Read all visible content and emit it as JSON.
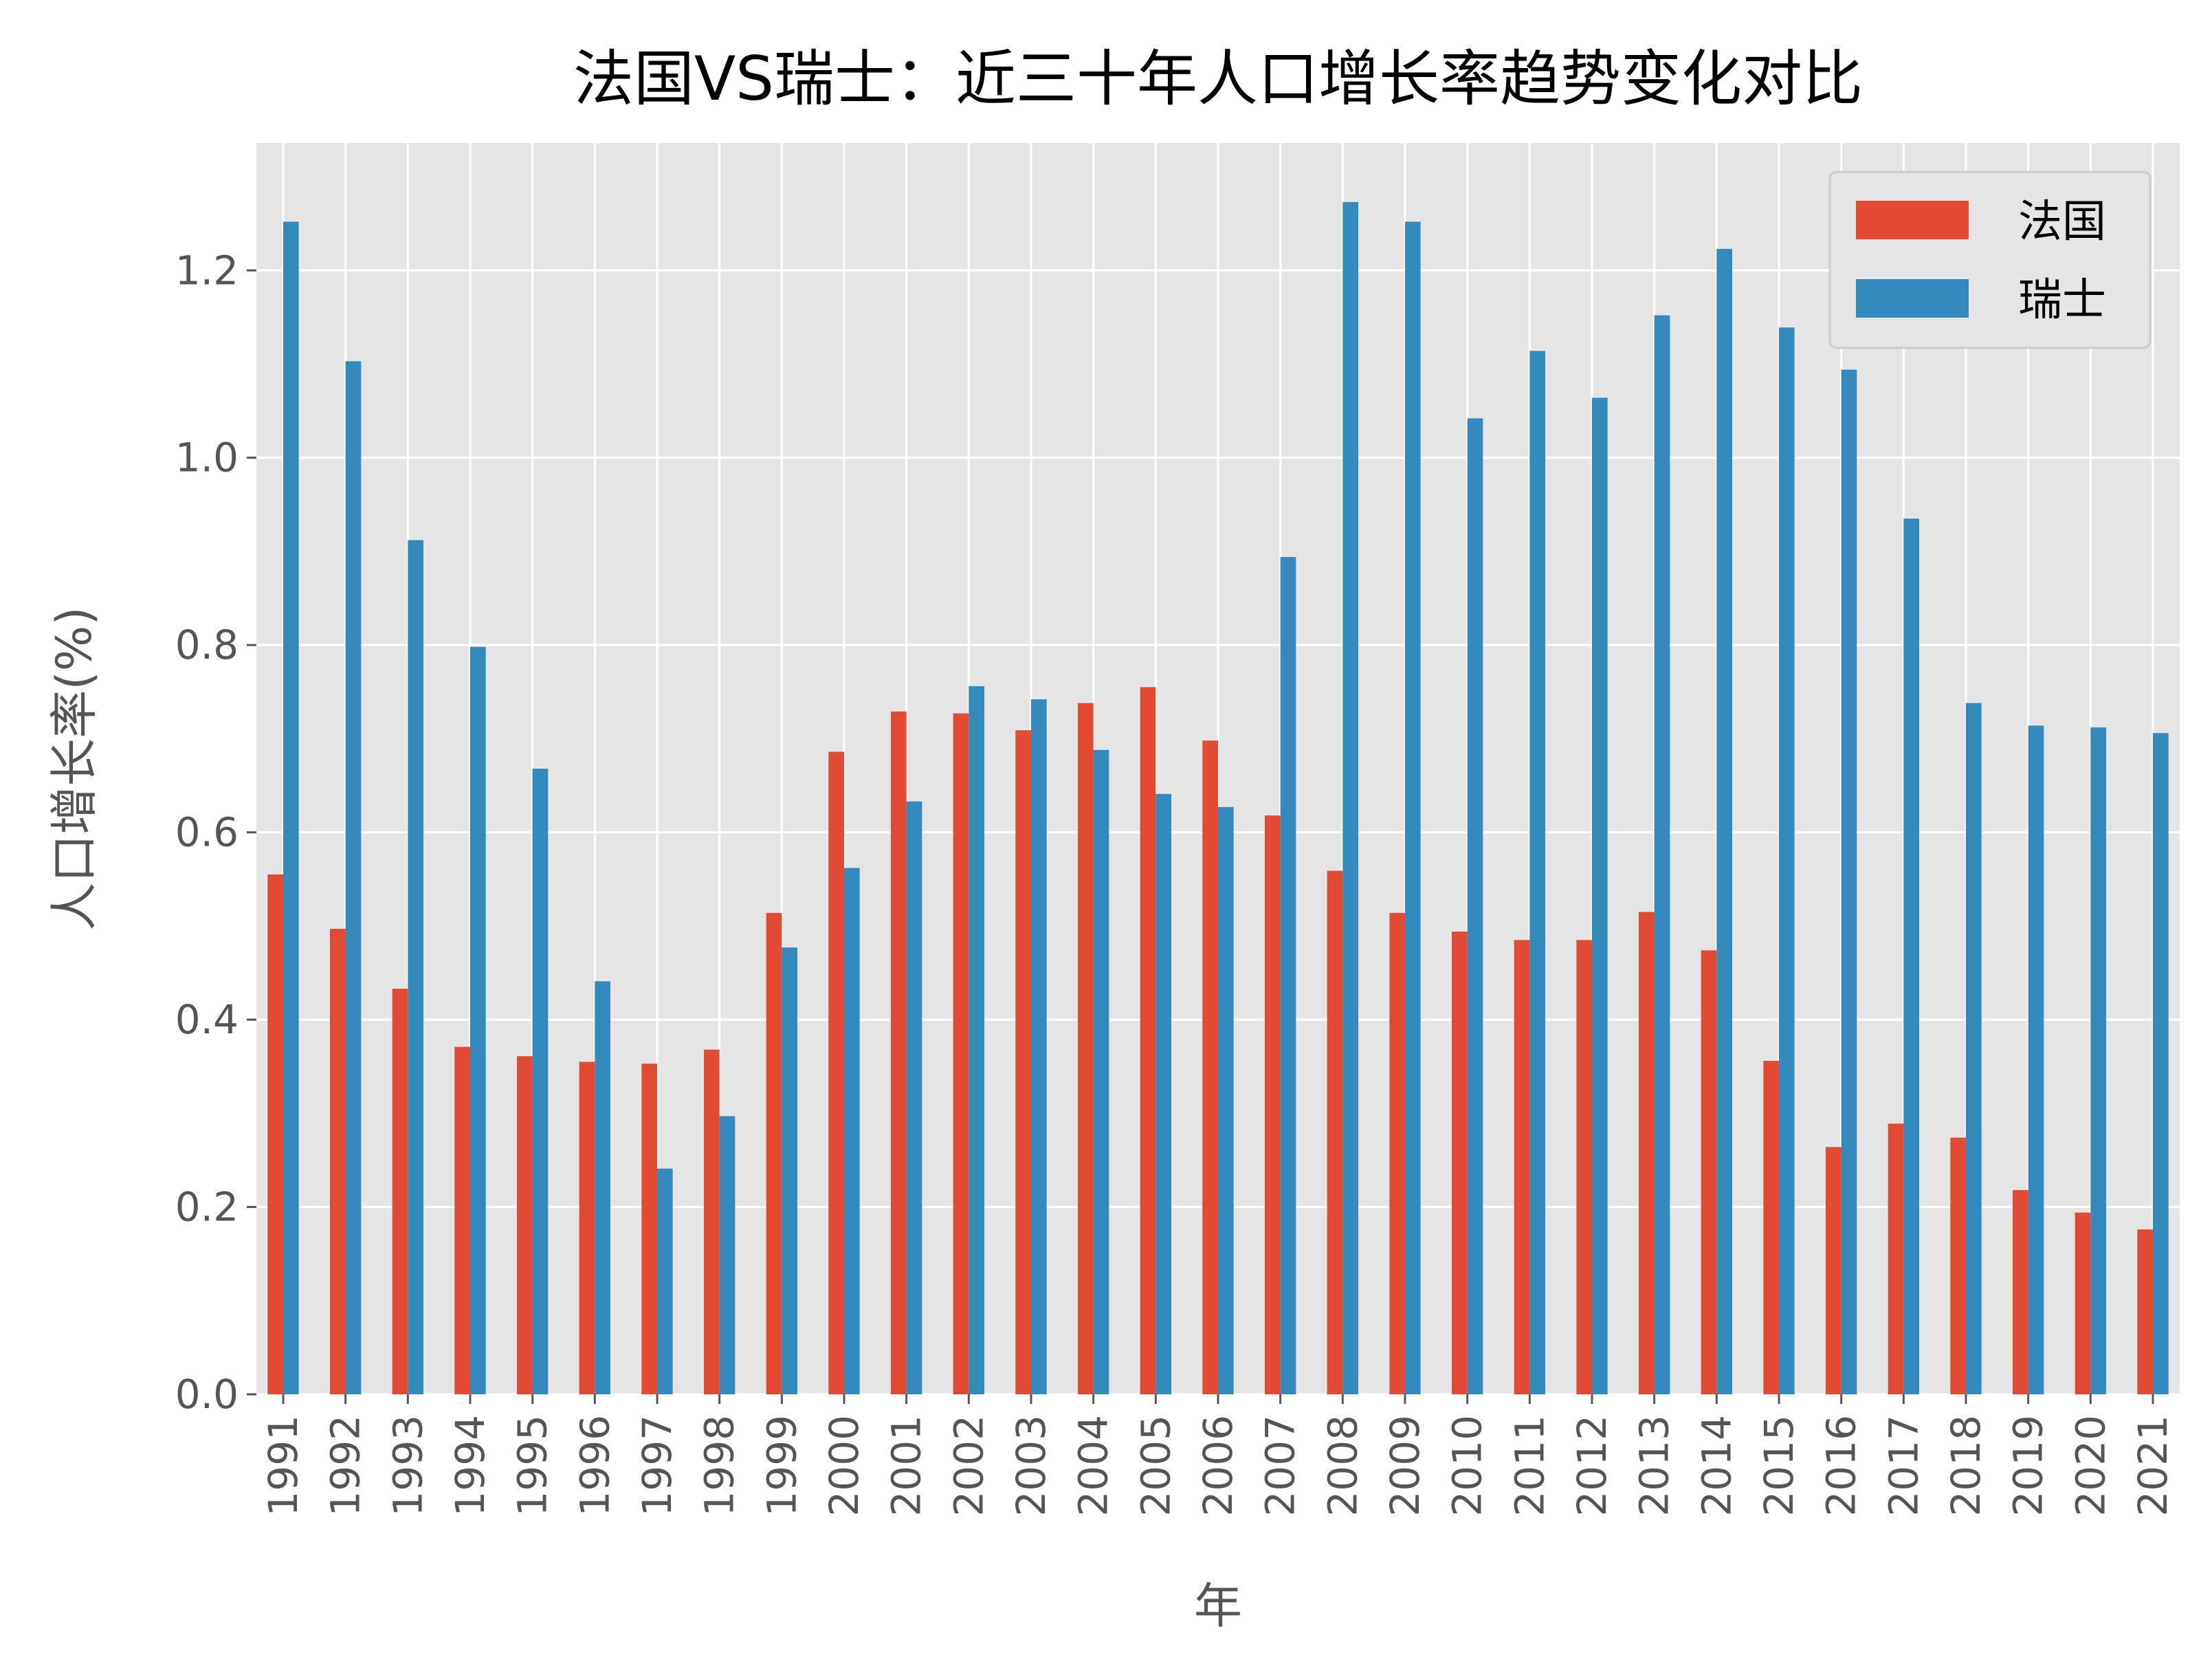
{
  "chart_data": {
    "type": "bar",
    "title": "法国VS瑞士：近三十年人口增长率趋势变化对比",
    "xlabel": "年",
    "ylabel": "人口增长率(%)",
    "ylim": [
      0,
      1.336
    ],
    "yticks": [
      "0.0",
      "0.2",
      "0.4",
      "0.6",
      "0.8",
      "1.0",
      "1.2"
    ],
    "grid": true,
    "legend": "top-right",
    "colors": {
      "法国": "#E24A33",
      "瑞士": "#348ABD",
      "background": "#E5E5E5",
      "grid": "#FFFFFF"
    },
    "categories": [
      "1991",
      "1992",
      "1993",
      "1994",
      "1995",
      "1996",
      "1997",
      "1998",
      "1999",
      "2000",
      "2001",
      "2002",
      "2003",
      "2004",
      "2005",
      "2006",
      "2007",
      "2008",
      "2009",
      "2010",
      "2011",
      "2012",
      "2013",
      "2014",
      "2015",
      "2016",
      "2017",
      "2018",
      "2019",
      "2020",
      "2021"
    ],
    "series": [
      {
        "name": "法国",
        "values": [
          0.555,
          0.497,
          0.433,
          0.371,
          0.361,
          0.355,
          0.353,
          0.368,
          0.514,
          0.686,
          0.729,
          0.727,
          0.709,
          0.738,
          0.755,
          0.698,
          0.618,
          0.559,
          0.514,
          0.494,
          0.485,
          0.485,
          0.515,
          0.474,
          0.356,
          0.264,
          0.289,
          0.274,
          0.218,
          0.194,
          0.176
        ]
      },
      {
        "name": "瑞士",
        "values": [
          1.252,
          1.103,
          0.912,
          0.798,
          0.668,
          0.441,
          0.241,
          0.297,
          0.477,
          0.562,
          0.633,
          0.756,
          0.742,
          0.688,
          0.641,
          0.627,
          0.894,
          1.273,
          1.252,
          1.042,
          1.114,
          1.064,
          1.152,
          1.223,
          1.139,
          1.094,
          0.935,
          0.738,
          0.714,
          0.712,
          0.706
        ]
      }
    ]
  }
}
